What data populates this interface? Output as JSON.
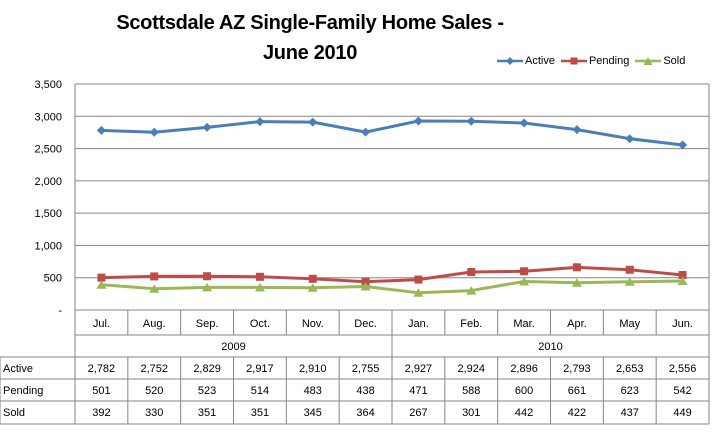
{
  "chart_data": {
    "type": "line",
    "title_lines": [
      "Scottsdale AZ Single-Family Home Sales -",
      "June 2010"
    ],
    "categories": [
      "Jul.",
      "Aug.",
      "Sep.",
      "Oct.",
      "Nov.",
      "Dec.",
      "Jan.",
      "Feb.",
      "Mar.",
      "Apr.",
      "May",
      "Jun."
    ],
    "year_groups": [
      {
        "label": "2009",
        "count": 6
      },
      {
        "label": "2010",
        "count": 6
      }
    ],
    "ylim": [
      0,
      3500
    ],
    "yticks": [
      "-",
      "500",
      "1,000",
      "1,500",
      "2,000",
      "2,500",
      "3,000",
      "3,500"
    ],
    "grid": true,
    "legend_position": "top-right",
    "series": [
      {
        "name": "Active",
        "color": "#4a7ebb",
        "marker": "diamond",
        "values": [
          2782,
          2752,
          2829,
          2917,
          2910,
          2755,
          2927,
          2924,
          2896,
          2793,
          2653,
          2556
        ],
        "labels": [
          "2,782",
          "2,752",
          "2,829",
          "2,917",
          "2,910",
          "2,755",
          "2,927",
          "2,924",
          "2,896",
          "2,793",
          "2,653",
          "2,556"
        ]
      },
      {
        "name": "Pending",
        "color": "#be4b48",
        "marker": "square",
        "values": [
          501,
          520,
          523,
          514,
          483,
          438,
          471,
          588,
          600,
          661,
          623,
          542
        ],
        "labels": [
          "501",
          "520",
          "523",
          "514",
          "483",
          "438",
          "471",
          "588",
          "600",
          "661",
          "623",
          "542"
        ]
      },
      {
        "name": "Sold",
        "color": "#98b954",
        "marker": "triangle",
        "values": [
          392,
          330,
          351,
          351,
          345,
          364,
          267,
          301,
          442,
          422,
          437,
          449
        ],
        "labels": [
          "392",
          "330",
          "351",
          "351",
          "345",
          "364",
          "267",
          "301",
          "442",
          "422",
          "437",
          "449"
        ]
      }
    ]
  }
}
